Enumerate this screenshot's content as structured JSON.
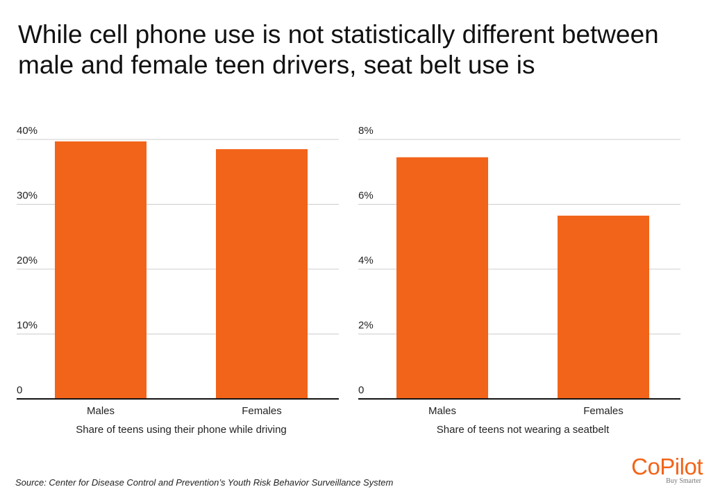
{
  "title": "While cell phone use is not statistically different between male and female teen drivers, seat belt use is",
  "source": "Source:  Center for Disease Control and Prevention’s Youth Risk Behavior Surveillance System",
  "logo": {
    "name": "CoPilot",
    "tagline": "Buy Smarter"
  },
  "colors": {
    "bar": "#f26419",
    "grid": "#cccccc",
    "axis": "#111111"
  },
  "chart_data": [
    {
      "type": "bar",
      "title": "",
      "categories": [
        "Males",
        "Females"
      ],
      "values": [
        39.7,
        38.5
      ],
      "xlabel": "Share of teens using their phone while driving",
      "ylabel": "",
      "ylim": [
        0,
        40
      ],
      "yticks": [
        0,
        10,
        20,
        30,
        40
      ],
      "ytick_labels": [
        "0",
        "10%",
        "20%",
        "30%",
        "40%"
      ],
      "grid": true
    },
    {
      "type": "bar",
      "title": "",
      "categories": [
        "Males",
        "Females"
      ],
      "values": [
        7.45,
        5.65
      ],
      "xlabel": "Share of teens not wearing a seatbelt",
      "ylabel": "",
      "ylim": [
        0,
        8
      ],
      "yticks": [
        0,
        2,
        4,
        6,
        8
      ],
      "ytick_labels": [
        "0",
        "2%",
        "4%",
        "6%",
        "8%"
      ],
      "grid": true
    }
  ]
}
